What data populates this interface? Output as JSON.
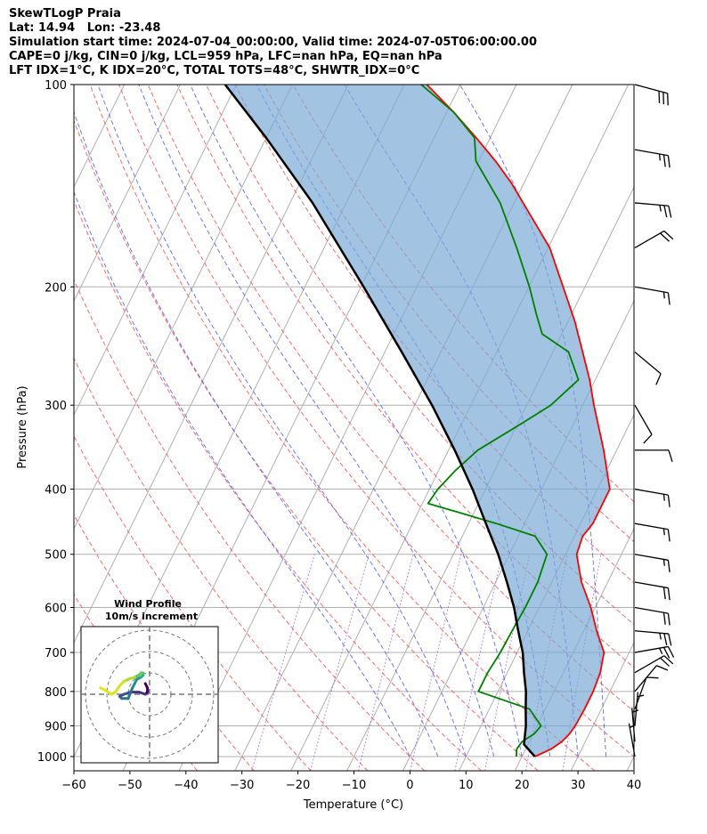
{
  "header": {
    "title": "SkewTLogP Praia",
    "location": "Lat: 14.94   Lon: -23.48",
    "times": "Simulation start time: 2024-07-04_00:00:00, Valid time: 2024-07-05T06:00:00.00",
    "indices1": "CAPE=0 j/kg, CIN=0 j/kg, LCL=959 hPa, LFC=nan hPa, EQ=nan hPa",
    "indices2": "LFT IDX=1°C, K IDX=20°C, TOTAL TOTS=48°C, SHWTR_IDX=0°C"
  },
  "chart_data": {
    "type": "line",
    "title": "SkewTLogP Praia",
    "xlabel": "Temperature (°C)",
    "ylabel": "Pressure (hPa)",
    "xlim": [
      -60,
      40
    ],
    "ylim": [
      1050,
      100
    ],
    "yscale": "log",
    "skew_deg_c_per_decade": 59,
    "x_ticks": [
      "−60",
      "−50",
      "−40",
      "−30",
      "−20",
      "−10",
      "0",
      "10",
      "20",
      "30",
      "40"
    ],
    "y_ticks": [
      "1000",
      "900",
      "800",
      "700",
      "600",
      "500",
      "400",
      "300",
      "200",
      "100"
    ],
    "grid": true,
    "series": [
      {
        "key": "temperature",
        "color": "#ff0000",
        "points": [
          [
            1000,
            22.3
          ],
          [
            975,
            24.5
          ],
          [
            950,
            25.8
          ],
          [
            925,
            26.5
          ],
          [
            900,
            26.8
          ],
          [
            850,
            27.0
          ],
          [
            800,
            27.0
          ],
          [
            750,
            26.6
          ],
          [
            700,
            25.5
          ],
          [
            650,
            22.3
          ],
          [
            600,
            19.2
          ],
          [
            550,
            15.3
          ],
          [
            500,
            12.0
          ],
          [
            470,
            11.5
          ],
          [
            450,
            12.2
          ],
          [
            400,
            12.2
          ],
          [
            350,
            7.7
          ],
          [
            300,
            2.0
          ],
          [
            275,
            -1.0
          ],
          [
            250,
            -4.7
          ],
          [
            225,
            -8.8
          ],
          [
            200,
            -13.9
          ],
          [
            175,
            -19.7
          ],
          [
            150,
            -28.4
          ],
          [
            140,
            -32.3
          ],
          [
            130,
            -37.0
          ],
          [
            120,
            -42.5
          ],
          [
            110,
            -48.7
          ],
          [
            100,
            -56.0
          ]
        ]
      },
      {
        "key": "dewpoint",
        "color": "#008000",
        "points": [
          [
            1000,
            19.0
          ],
          [
            975,
            18.4
          ],
          [
            950,
            18.7
          ],
          [
            925,
            20.2
          ],
          [
            900,
            20.7
          ],
          [
            850,
            17.2
          ],
          [
            800,
            6.5
          ],
          [
            750,
            6.5
          ],
          [
            700,
            7.0
          ],
          [
            650,
            7.2
          ],
          [
            600,
            7.5
          ],
          [
            550,
            7.5
          ],
          [
            500,
            6.7
          ],
          [
            470,
            3.0
          ],
          [
            450,
            -5.0
          ],
          [
            420,
            -19.0
          ],
          [
            400,
            -18.5
          ],
          [
            375,
            -17.0
          ],
          [
            350,
            -14.8
          ],
          [
            320,
            -9.4
          ],
          [
            300,
            -5.7
          ],
          [
            275,
            -3.0
          ],
          [
            250,
            -7.2
          ],
          [
            235,
            -13.5
          ],
          [
            220,
            -16.2
          ],
          [
            200,
            -19.9
          ],
          [
            175,
            -25.6
          ],
          [
            150,
            -32.5
          ],
          [
            130,
            -40.5
          ],
          [
            120,
            -42.8
          ],
          [
            110,
            -48.7
          ],
          [
            100,
            -57.0
          ]
        ]
      },
      {
        "key": "parcel",
        "color": "#000000",
        "points": [
          [
            1000,
            22.3
          ],
          [
            959,
            19.3
          ],
          [
            900,
            18.0
          ],
          [
            850,
            16.5
          ],
          [
            800,
            15.0
          ],
          [
            750,
            13.0
          ],
          [
            700,
            11.0
          ],
          [
            650,
            8.3
          ],
          [
            600,
            5.5
          ],
          [
            550,
            2.0
          ],
          [
            500,
            -2.0
          ],
          [
            450,
            -6.9
          ],
          [
            400,
            -12.3
          ],
          [
            350,
            -18.9
          ],
          [
            300,
            -26.9
          ],
          [
            250,
            -37.0
          ],
          [
            200,
            -49.5
          ],
          [
            150,
            -66.0
          ],
          [
            120,
            -80.0
          ],
          [
            100,
            -92.0
          ]
        ]
      }
    ],
    "wind_profile": {
      "title": "Wind Profile",
      "subtitle": "10m/s increment",
      "rings_ms": [
        10,
        20,
        30
      ],
      "hodograph_uv": [
        [
          -2,
          5
        ],
        [
          -1,
          3
        ],
        [
          -1,
          1
        ],
        [
          -2,
          0
        ],
        [
          -5,
          1
        ],
        [
          -9,
          1
        ],
        [
          -12,
          0
        ],
        [
          -14,
          -1
        ],
        [
          -13,
          -2
        ],
        [
          -10,
          -2
        ],
        [
          -8,
          3
        ],
        [
          -7,
          5
        ],
        [
          -6,
          7
        ],
        [
          -4,
          8
        ],
        [
          -3,
          9
        ],
        [
          -3,
          10
        ],
        [
          -4,
          10
        ],
        [
          -5,
          9
        ],
        [
          -7,
          8
        ],
        [
          -10,
          7
        ],
        [
          -12,
          6
        ],
        [
          -14,
          4
        ],
        [
          -16,
          1
        ],
        [
          -18,
          0
        ],
        [
          -21,
          2
        ],
        [
          -23,
          3
        ]
      ]
    },
    "wind_barbs": [
      {
        "p": 100,
        "dir": 105,
        "kts": 30
      },
      {
        "p": 125,
        "dir": 100,
        "kts": 25
      },
      {
        "p": 150,
        "dir": 95,
        "kts": 25
      },
      {
        "p": 175,
        "dir": 60,
        "kts": 20
      },
      {
        "p": 200,
        "dir": 100,
        "kts": 15
      },
      {
        "p": 250,
        "dir": 130,
        "kts": 10
      },
      {
        "p": 300,
        "dir": 150,
        "kts": 10
      },
      {
        "p": 350,
        "dir": 90,
        "kts": 10
      },
      {
        "p": 400,
        "dir": 100,
        "kts": 15
      },
      {
        "p": 450,
        "dir": 100,
        "kts": 15
      },
      {
        "p": 500,
        "dir": 100,
        "kts": 15
      },
      {
        "p": 550,
        "dir": 100,
        "kts": 20
      },
      {
        "p": 600,
        "dir": 100,
        "kts": 20
      },
      {
        "p": 650,
        "dir": 95,
        "kts": 25
      },
      {
        "p": 700,
        "dir": 80,
        "kts": 25
      },
      {
        "p": 750,
        "dir": 60,
        "kts": 20
      },
      {
        "p": 800,
        "dir": 40,
        "kts": 10
      },
      {
        "p": 850,
        "dir": 20,
        "kts": 10
      },
      {
        "p": 900,
        "dir": 5,
        "kts": 5
      },
      {
        "p": 950,
        "dir": 355,
        "kts": 5
      },
      {
        "p": 1000,
        "dir": 350,
        "kts": 5
      }
    ]
  }
}
